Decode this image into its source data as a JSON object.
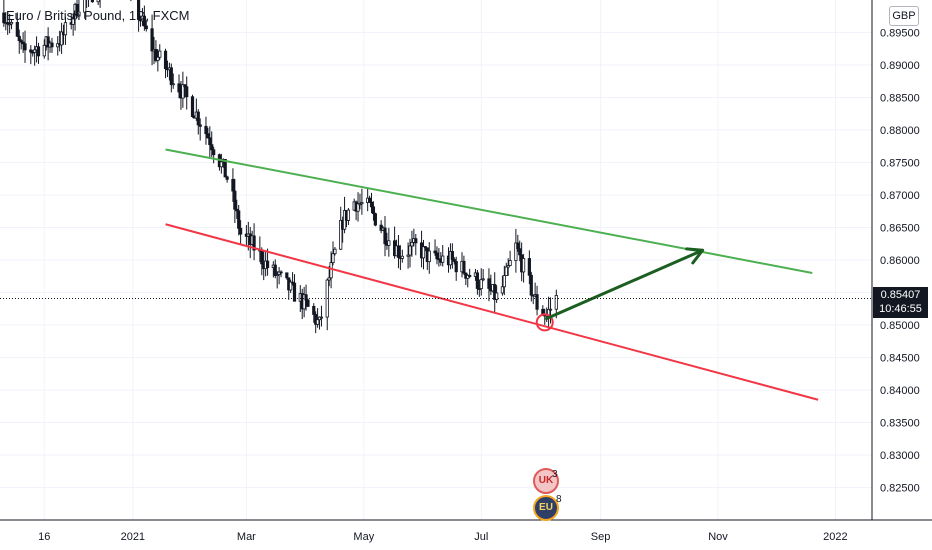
{
  "header": {
    "title": "Euro / British Pound, 1D, FXCM"
  },
  "currency": "GBP",
  "last_price": {
    "value": "0.85407",
    "countdown": "10:46:55"
  },
  "events": [
    {
      "name": "uk-event",
      "count": "3"
    },
    {
      "name": "eu-event",
      "count": "8"
    }
  ],
  "colors": {
    "up_candle": "#ffffff",
    "candle_outline": "#131722",
    "upper_channel": "#4caf50",
    "lower_channel": "#f23645",
    "projection_arrow": "#1b5e20",
    "grid": "#f0f3fa"
  },
  "chart_data": {
    "type": "candlestick",
    "title": "Euro / British Pound, 1D, FXCM",
    "y_ticks": [
      "0.82500",
      "0.83000",
      "0.83500",
      "0.84000",
      "0.84500",
      "0.85000",
      "0.85500",
      "0.86000",
      "0.86500",
      "0.87000",
      "0.87500",
      "0.88000",
      "0.88500",
      "0.89000",
      "0.89500"
    ],
    "ylim": [
      0.82,
      0.9
    ],
    "x_ticks": [
      "16",
      "2021",
      "Mar",
      "May",
      "Jul",
      "Sep",
      "Nov",
      "2022"
    ],
    "x_tick_dates": [
      "2020-11-16",
      "2021-01-01",
      "2021-03-01",
      "2021-05-01",
      "2021-07-01",
      "2021-09-01",
      "2021-11-01",
      "2022-01-01"
    ],
    "xlim": [
      "2020-10-24",
      "2022-01-20"
    ],
    "close_path": [
      [
        "2020-10-26",
        0.898
      ],
      [
        "2020-11-05",
        0.892
      ],
      [
        "2020-11-16",
        0.893
      ],
      [
        "2020-11-25",
        0.894
      ],
      [
        "2020-12-05",
        0.9
      ],
      [
        "2020-12-15",
        0.902
      ],
      [
        "2020-12-25",
        0.906
      ],
      [
        "2021-01-01",
        0.9
      ],
      [
        "2021-01-12",
        0.892
      ],
      [
        "2021-01-22",
        0.888
      ],
      [
        "2021-02-02",
        0.883
      ],
      [
        "2021-02-11",
        0.878
      ],
      [
        "2021-02-20",
        0.872
      ],
      [
        "2021-02-26",
        0.864
      ],
      [
        "2021-03-05",
        0.862
      ],
      [
        "2021-03-12",
        0.859
      ],
      [
        "2021-03-22",
        0.856
      ],
      [
        "2021-04-01",
        0.853
      ],
      [
        "2021-04-08",
        0.85
      ],
      [
        "2021-04-12",
        0.856
      ],
      [
        "2021-04-20",
        0.866
      ],
      [
        "2021-04-26",
        0.869
      ],
      [
        "2021-05-04",
        0.868
      ],
      [
        "2021-05-12",
        0.864
      ],
      [
        "2021-05-20",
        0.861
      ],
      [
        "2021-05-28",
        0.862
      ],
      [
        "2021-06-06",
        0.86
      ],
      [
        "2021-06-15",
        0.86
      ],
      [
        "2021-06-24",
        0.858
      ],
      [
        "2021-07-02",
        0.856
      ],
      [
        "2021-07-10",
        0.854
      ],
      [
        "2021-07-19",
        0.862
      ],
      [
        "2021-07-24",
        0.858
      ],
      [
        "2021-07-30",
        0.853
      ],
      [
        "2021-08-04",
        0.8515
      ],
      [
        "2021-08-09",
        0.8541
      ]
    ],
    "trendlines": [
      {
        "name": "upper-channel",
        "start": [
          "2021-01-18",
          0.877
        ],
        "end": [
          "2021-12-20",
          0.858
        ]
      },
      {
        "name": "lower-channel",
        "start": [
          "2021-01-18",
          0.8655
        ],
        "end": [
          "2021-12-23",
          0.8385
        ]
      }
    ],
    "projection_arrow": {
      "start": [
        "2021-08-04",
        0.851
      ],
      "end": [
        "2021-10-24",
        0.8615
      ]
    },
    "highlight_circle": [
      "2021-08-03",
      0.8504
    ],
    "last_price": 0.85407
  }
}
